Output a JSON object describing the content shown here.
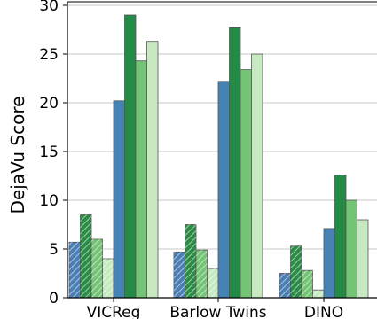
{
  "chart_data": {
    "type": "bar",
    "ylabel": "DejaVu Score",
    "xlabel": "",
    "title": "",
    "ylim": [
      0,
      30
    ],
    "yticks": [
      0,
      5,
      10,
      15,
      20,
      25,
      30
    ],
    "categories": [
      "VICReg",
      "Barlow Twins",
      "DINO"
    ],
    "grid": "horizontal",
    "legend": "none",
    "series": [
      {
        "values": [
          5.7,
          4.7,
          2.5
        ],
        "color": "#4a7fb5",
        "pattern": "hatch"
      },
      {
        "values": [
          8.5,
          7.5,
          5.3
        ],
        "color": "#2b8c45",
        "pattern": "hatch"
      },
      {
        "values": [
          6.0,
          4.9,
          2.8
        ],
        "color": "#74c476",
        "pattern": "hatch"
      },
      {
        "values": [
          4.0,
          3.0,
          0.8
        ],
        "color": "#c7e9c0",
        "pattern": "hatch"
      },
      {
        "values": [
          20.2,
          22.2,
          7.1
        ],
        "color": "#4682b4",
        "pattern": "solid"
      },
      {
        "values": [
          29.0,
          27.7,
          12.6
        ],
        "color": "#238b45",
        "pattern": "solid"
      },
      {
        "values": [
          24.3,
          23.4,
          10.0
        ],
        "color": "#74c476",
        "pattern": "solid"
      },
      {
        "values": [
          26.3,
          25.0,
          8.0
        ],
        "color": "#c7e9c0",
        "pattern": "solid"
      }
    ]
  }
}
